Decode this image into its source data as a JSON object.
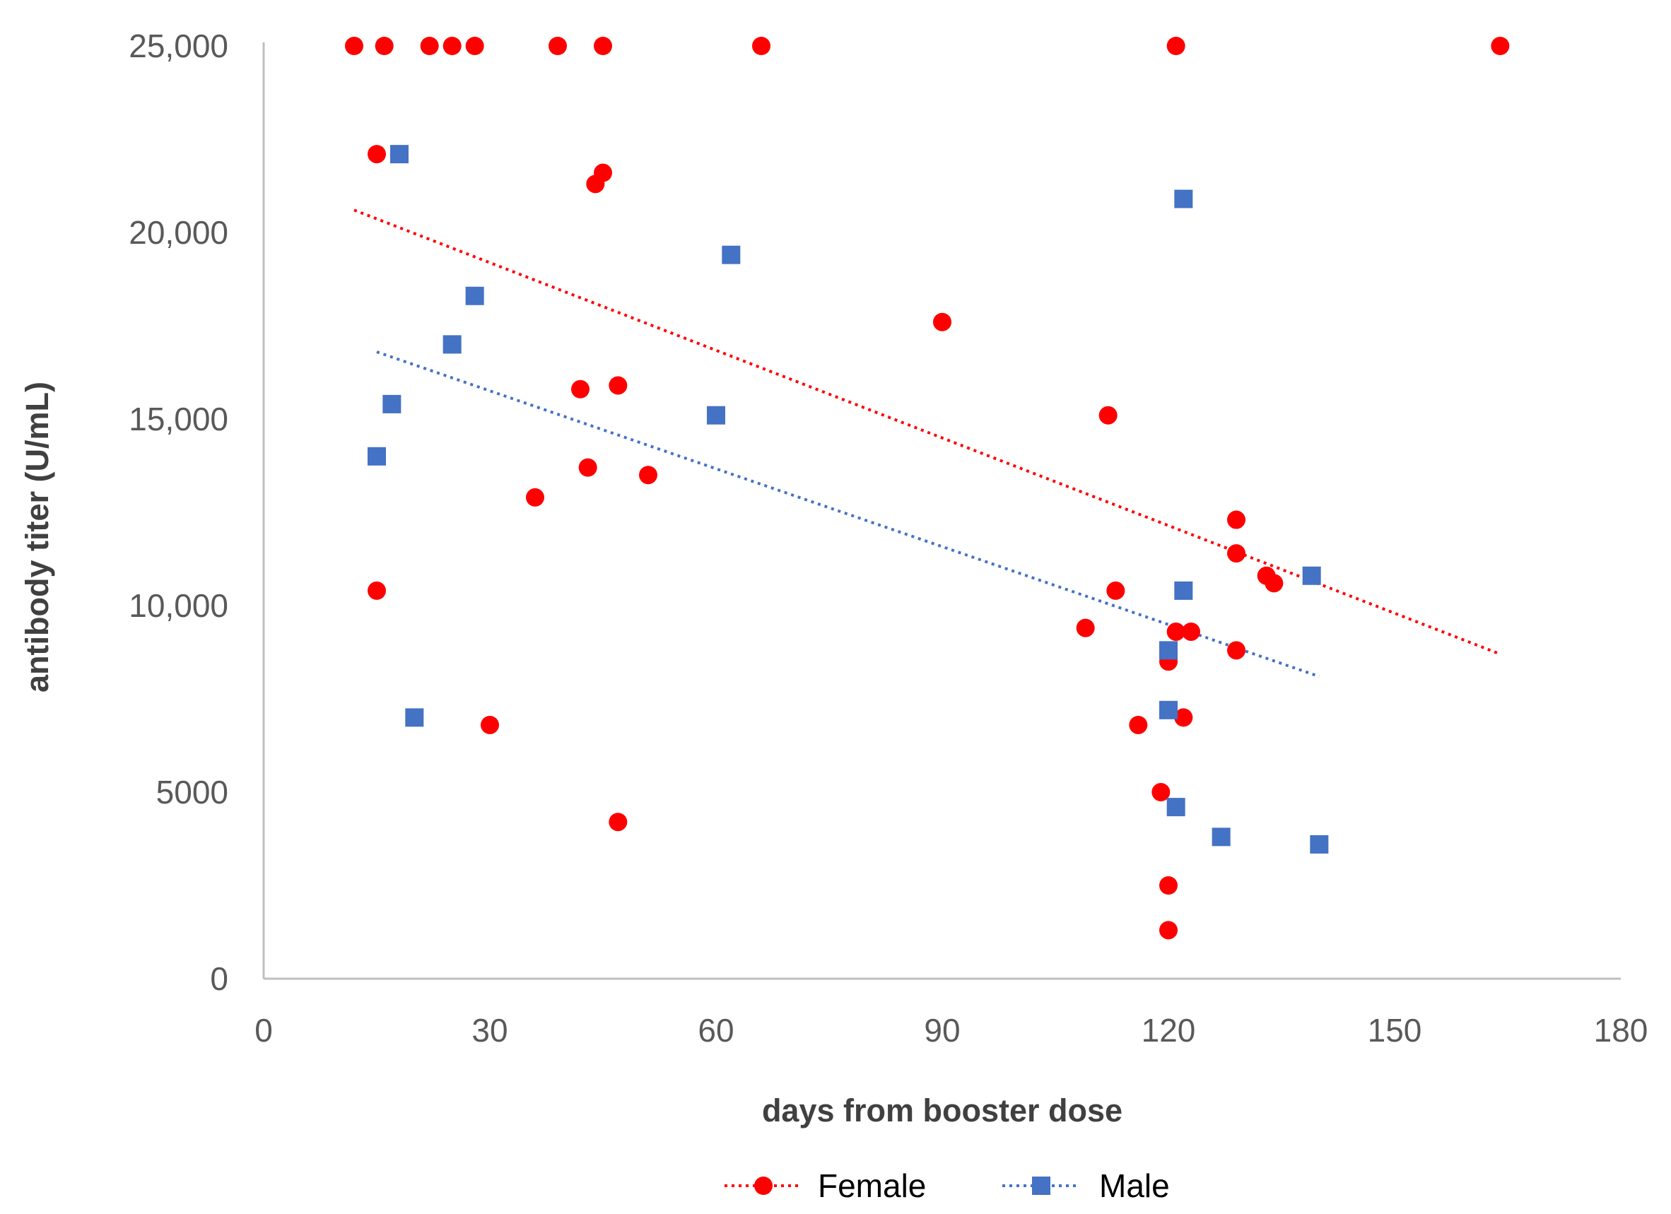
{
  "chart_data": {
    "type": "scatter",
    "xlabel": "days from booster dose",
    "ylabel": "antibody titer (U/mL)",
    "xlim": [
      0,
      180
    ],
    "ylim": [
      0,
      25000
    ],
    "x_ticks": [
      0,
      30,
      60,
      90,
      120,
      150,
      180
    ],
    "x_tick_labels": [
      "0",
      "30",
      "60",
      "90",
      "120",
      "150",
      "180"
    ],
    "y_ticks": [
      0,
      5000,
      10000,
      15000,
      20000,
      25000
    ],
    "y_tick_labels": [
      "0",
      "5000",
      "10,000",
      "15,000",
      "20,000",
      "25,000"
    ],
    "grid": false,
    "legend_position": "bottom",
    "series": [
      {
        "name": "Female",
        "color": "#ff0000",
        "marker": "circle",
        "trendline": {
          "style": "dotted",
          "from": [
            12,
            20600
          ],
          "to": [
            164,
            8700
          ]
        },
        "points": [
          [
            12,
            25000
          ],
          [
            16,
            25000
          ],
          [
            22,
            25000
          ],
          [
            25,
            25000
          ],
          [
            28,
            25000
          ],
          [
            39,
            25000
          ],
          [
            45,
            25000
          ],
          [
            66,
            25000
          ],
          [
            121,
            25000
          ],
          [
            164,
            25000
          ],
          [
            15,
            22100
          ],
          [
            44,
            21300
          ],
          [
            45,
            21600
          ],
          [
            90,
            17600
          ],
          [
            42,
            15800
          ],
          [
            47,
            15900
          ],
          [
            112,
            15100
          ],
          [
            43,
            13700
          ],
          [
            51,
            13500
          ],
          [
            36,
            12900
          ],
          [
            129,
            12300
          ],
          [
            129,
            11400
          ],
          [
            133,
            10800
          ],
          [
            134,
            10600
          ],
          [
            15,
            10400
          ],
          [
            113,
            10400
          ],
          [
            109,
            9400
          ],
          [
            121,
            9300
          ],
          [
            123,
            9300
          ],
          [
            129,
            8800
          ],
          [
            120,
            8500
          ],
          [
            122,
            7000
          ],
          [
            116,
            6800
          ],
          [
            30,
            6800
          ],
          [
            119,
            5000
          ],
          [
            47,
            4200
          ],
          [
            120,
            2500
          ],
          [
            120,
            1300
          ]
        ]
      },
      {
        "name": "Male",
        "color": "#4472c4",
        "marker": "square",
        "trendline": {
          "style": "dotted",
          "from": [
            15,
            16800
          ],
          "to": [
            140,
            8100
          ]
        },
        "points": [
          [
            18,
            22100
          ],
          [
            122,
            20900
          ],
          [
            62,
            19400
          ],
          [
            28,
            18300
          ],
          [
            25,
            17000
          ],
          [
            17,
            15400
          ],
          [
            60,
            15100
          ],
          [
            15,
            14000
          ],
          [
            139,
            10800
          ],
          [
            122,
            10400
          ],
          [
            120,
            8800
          ],
          [
            20,
            7000
          ],
          [
            120,
            7200
          ],
          [
            121,
            4600
          ],
          [
            127,
            3800
          ],
          [
            140,
            3600
          ]
        ]
      }
    ]
  }
}
